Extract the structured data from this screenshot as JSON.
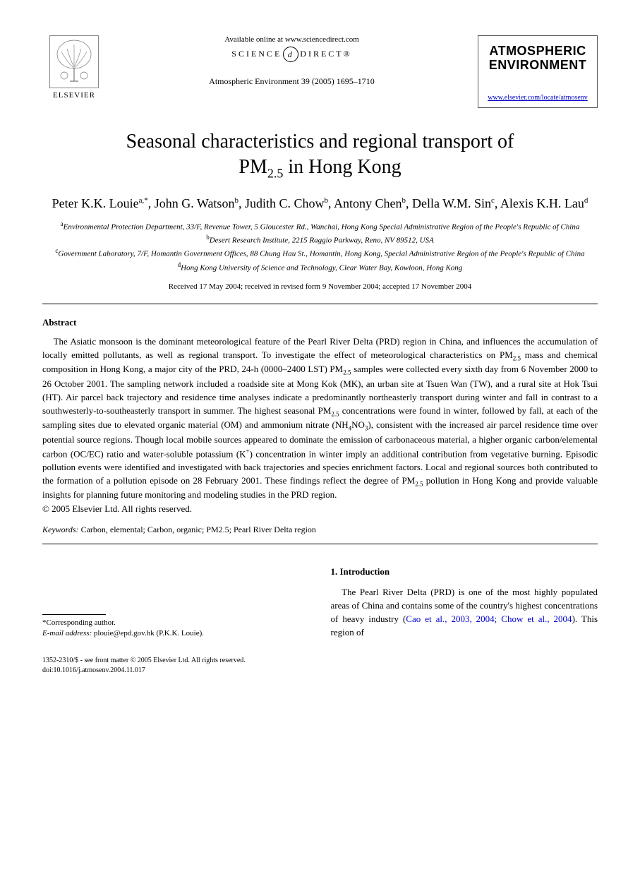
{
  "header": {
    "elsevier_label": "ELSEVIER",
    "available_online": "Available online at www.sciencedirect.com",
    "sciencedirect_prefix": "SCIENCE",
    "sciencedirect_suffix": "DIRECT®",
    "journal_ref": "Atmospheric Environment 39 (2005) 1695–1710",
    "journal_name_line1": "ATMOSPHERIC",
    "journal_name_line2": "ENVIRONMENT",
    "journal_url": "www.elsevier.com/locate/atmosenv"
  },
  "title_line1": "Seasonal characteristics and regional transport of",
  "title_line2_prefix": "PM",
  "title_line2_sub": "2.5",
  "title_line2_suffix": " in Hong Kong",
  "authors_html": "Peter K.K. Louie<sup>a,*</sup>, John G. Watson<sup>b</sup>, Judith C. Chow<sup>b</sup>, Antony Chen<sup>b</sup>, Della W.M. Sin<sup>c</sup>, Alexis K.H. Lau<sup>d</sup>",
  "affiliations": [
    {
      "sup": "a",
      "text": "Environmental Protection Department, 33/F, Revenue Tower, 5 Gloucester Rd., Wanchai, Hong Kong Special Administrative Region of the People's Republic of China"
    },
    {
      "sup": "b",
      "text": "Desert Research Institute, 2215 Raggio Parkway, Reno, NV 89512, USA"
    },
    {
      "sup": "c",
      "text": "Government Laboratory, 7/F, Homantin Government Offices, 88 Chung Hau St., Homantin, Hong Kong, Special Administrative Region of the People's Republic of China"
    },
    {
      "sup": "d",
      "text": "Hong Kong University of Science and Technology, Clear Water Bay, Kowloon, Hong Kong"
    }
  ],
  "dates": "Received 17 May 2004; received in revised form 9 November 2004; accepted 17 November 2004",
  "abstract_heading": "Abstract",
  "abstract_body_html": "The Asiatic monsoon is the dominant meteorological feature of the Pearl River Delta (PRD) region in China, and influences the accumulation of locally emitted pollutants, as well as regional transport. To investigate the effect of meteorological characteristics on PM<sub>2.5</sub> mass and chemical composition in Hong Kong, a major city of the PRD, 24-h (0000–2400 LST) PM<sub>2.5</sub> samples were collected every sixth day from 6 November 2000 to 26 October 2001. The sampling network included a roadside site at Mong Kok (MK), an urban site at Tsuen Wan (TW), and a rural site at Hok Tsui (HT). Air parcel back trajectory and residence time analyses indicate a predominantly northeasterly transport during winter and fall in contrast to a southwesterly-to-southeasterly transport in summer. The highest seasonal PM<sub>2.5</sub> concentrations were found in winter, followed by fall, at each of the sampling sites due to elevated organic material (OM) and ammonium nitrate (NH<sub>4</sub>NO<sub>3</sub>), consistent with the increased air parcel residence time over potential source regions. Though local mobile sources appeared to dominate the emission of carbonaceous material, a higher organic carbon/elemental carbon (OC/EC) ratio and water-soluble potassium (K<sup>+</sup>) concentration in winter imply an additional contribution from vegetative burning. Episodic pollution events were identified and investigated with back trajectories and species enrichment factors. Local and regional sources both contributed to the formation of a pollution episode on 28 February 2001. These findings reflect the degree of PM<sub>2.5</sub> pollution in Hong Kong and provide valuable insights for planning future monitoring and modeling studies in the PRD region.",
  "copyright": "© 2005 Elsevier Ltd. All rights reserved.",
  "keywords_label": "Keywords:",
  "keywords_text": " Carbon, elemental; Carbon, organic; PM2.5; Pearl River Delta region",
  "intro_heading": "1. Introduction",
  "intro_text_html": "The Pearl River Delta (PRD) is one of the most highly populated areas of China and contains some of the country's highest concentrations of heavy industry (<span class=\"cite\">Cao et al., 2003, 2004; Chow et al., 2004</span>). This region of",
  "footnote_marker": "*Corresponding author.",
  "footnote_email_label": "E-mail address:",
  "footnote_email": " plouie@epd.gov.hk (P.K.K. Louie).",
  "footer_line1": "1352-2310/$ - see front matter © 2005 Elsevier Ltd. All rights reserved.",
  "footer_line2": "doi:10.1016/j.atmosenv.2004.11.017"
}
